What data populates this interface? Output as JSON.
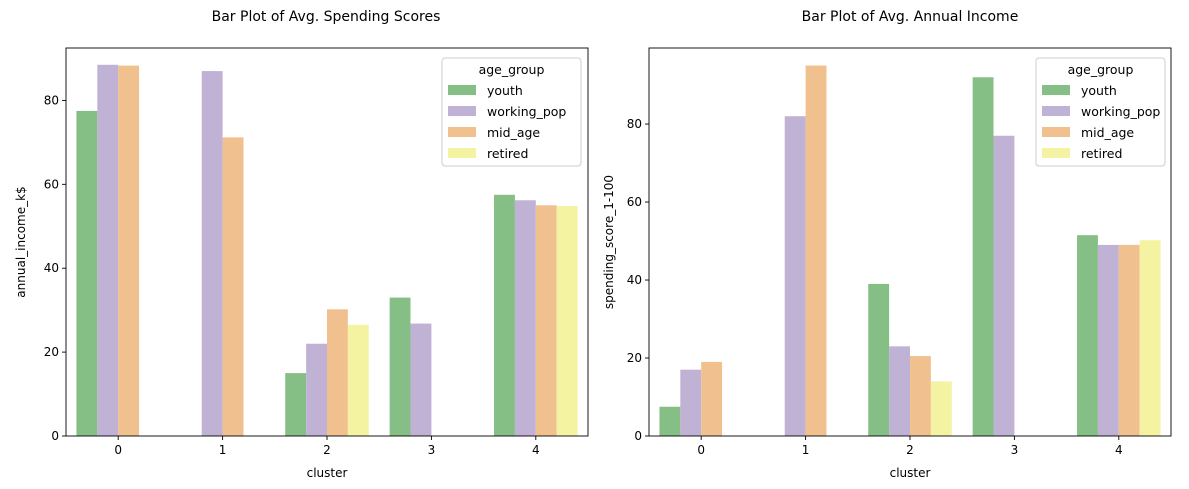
{
  "chart_data": [
    {
      "type": "bar",
      "title": "Bar Plot of Avg. Spending Scores",
      "xlabel": "cluster",
      "ylabel": "annual_income_k$",
      "categories": [
        "0",
        "1",
        "2",
        "3",
        "4"
      ],
      "ylim": [
        0,
        92.5
      ],
      "yticks": [
        0,
        20,
        40,
        60,
        80
      ],
      "grid": false,
      "legend_title": "age_group",
      "legend_position": "top-right",
      "series": [
        {
          "name": "youth",
          "color": "#86bf86",
          "values": [
            77.5,
            null,
            15.0,
            33.0,
            57.5
          ]
        },
        {
          "name": "working_pop",
          "color": "#c0b2d4",
          "values": [
            88.5,
            87.0,
            22.0,
            26.8,
            56.2
          ]
        },
        {
          "name": "mid_age",
          "color": "#f0c08f",
          "values": [
            88.3,
            71.2,
            30.2,
            null,
            55.0
          ]
        },
        {
          "name": "retired",
          "color": "#f3f3a2",
          "values": [
            null,
            null,
            26.5,
            null,
            54.8
          ]
        }
      ]
    },
    {
      "type": "bar",
      "title": "Bar Plot of Avg. Annual Income",
      "xlabel": "cluster",
      "ylabel": "spending_score_1-100",
      "categories": [
        "0",
        "1",
        "2",
        "3",
        "4"
      ],
      "ylim": [
        0,
        99.5
      ],
      "yticks": [
        0,
        20,
        40,
        60,
        80
      ],
      "grid": false,
      "legend_title": "age_group",
      "legend_position": "top-right",
      "series": [
        {
          "name": "youth",
          "color": "#86bf86",
          "values": [
            7.5,
            null,
            39.0,
            92.0,
            51.5
          ]
        },
        {
          "name": "working_pop",
          "color": "#c0b2d4",
          "values": [
            17.0,
            82.0,
            23.0,
            77.0,
            49.0
          ]
        },
        {
          "name": "mid_age",
          "color": "#f0c08f",
          "values": [
            19.0,
            95.0,
            20.5,
            null,
            49.0
          ]
        },
        {
          "name": "retired",
          "color": "#f3f3a2",
          "values": [
            null,
            null,
            14.0,
            null,
            50.2
          ]
        }
      ]
    }
  ]
}
